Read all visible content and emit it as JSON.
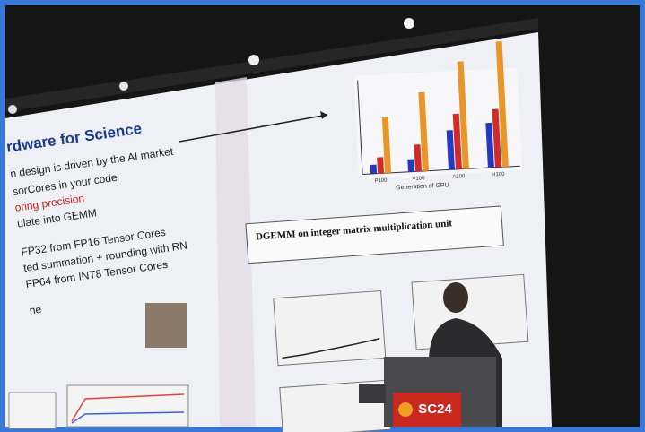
{
  "slide": {
    "title": "rdware for Science",
    "bullets": [
      "n design is driven by the AI market",
      "sorCores in your code",
      "oring precision",
      "ulate into GEMM",
      "FP32 from FP16 Tensor Cores",
      "ted summation + rounding with RN",
      "FP64 from INT8 Tensor Cores",
      "ne"
    ],
    "chart_axis_label": "Generation of GPU",
    "chart_categories": [
      "P100",
      "V100",
      "A100",
      "H100"
    ],
    "panel_title": "DGEMM on integer matrix multiplication unit"
  },
  "podium": {
    "logo": "SC24"
  }
}
